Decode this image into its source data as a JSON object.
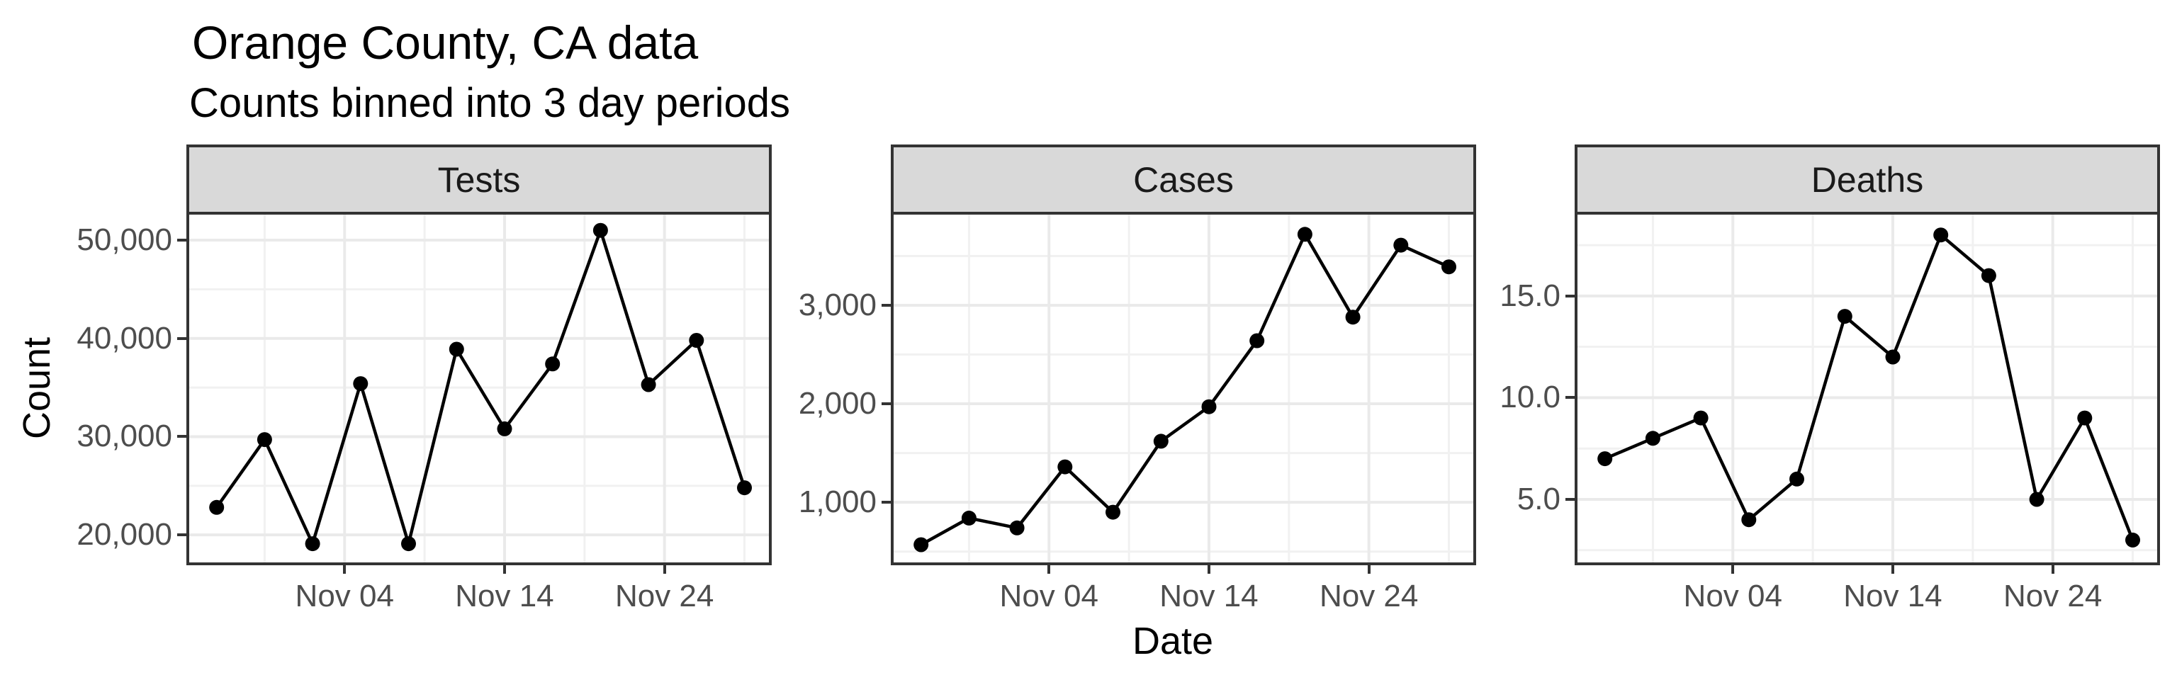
{
  "chart_data": {
    "type": "line",
    "title": "Orange County, CA data",
    "subtitle": "Counts binned into 3 day periods",
    "xlabel": "Date",
    "ylabel": "Count",
    "grid": "on",
    "legend": "none",
    "x": [
      "Oct 27",
      "Oct 30",
      "Nov 02",
      "Nov 05",
      "Nov 08",
      "Nov 11",
      "Nov 14",
      "Nov 17",
      "Nov 20",
      "Nov 23",
      "Nov 26",
      "Nov 29"
    ],
    "x_day_offsets": [
      0,
      3,
      6,
      9,
      12,
      15,
      18,
      21,
      24,
      27,
      30,
      33
    ],
    "x_major_ticks": [
      {
        "day": 8,
        "label": "Nov 04"
      },
      {
        "day": 18,
        "label": "Nov 14"
      },
      {
        "day": 28,
        "label": "Nov 24"
      }
    ],
    "x_minor_days": [
      3,
      13,
      23,
      33
    ],
    "series": [
      {
        "name": "Tests",
        "values": [
          22800,
          29700,
          19100,
          35400,
          19100,
          38900,
          30800,
          37400,
          51000,
          35300,
          39800,
          24800
        ]
      },
      {
        "name": "Cases",
        "values": [
          570,
          840,
          740,
          1360,
          900,
          1620,
          1970,
          2640,
          3720,
          2880,
          3610,
          3390
        ]
      },
      {
        "name": "Deaths",
        "values": [
          7,
          8,
          9,
          4,
          6,
          14,
          12,
          18,
          16,
          5,
          9,
          3
        ]
      }
    ],
    "facets": [
      {
        "label": "Tests",
        "ylim": [
          17200,
          52600
        ],
        "y_major_ticks": [
          {
            "v": 20000,
            "label": "20,000"
          },
          {
            "v": 30000,
            "label": "30,000"
          },
          {
            "v": 40000,
            "label": "40,000"
          },
          {
            "v": 50000,
            "label": "50,000"
          }
        ],
        "y_minor": [
          25000,
          35000,
          45000
        ]
      },
      {
        "label": "Cases",
        "ylim": [
          390,
          3920
        ],
        "y_major_ticks": [
          {
            "v": 1000,
            "label": "1,000"
          },
          {
            "v": 2000,
            "label": "2,000"
          },
          {
            "v": 3000,
            "label": "3,000"
          }
        ],
        "y_minor": [
          500,
          1500,
          2500,
          3500
        ]
      },
      {
        "label": "Deaths",
        "ylim": [
          1.9,
          19.0
        ],
        "y_major_ticks": [
          {
            "v": 5,
            "label": "5.0"
          },
          {
            "v": 10,
            "label": "10.0"
          },
          {
            "v": 15,
            "label": "15.0"
          }
        ],
        "y_minor": [
          2.5,
          7.5,
          12.5,
          17.5
        ]
      }
    ],
    "colors": {
      "line": "#000000",
      "point": "#000000",
      "axis_text": "#4d4d4d",
      "axis_title": "#000000",
      "panel_border": "#333333",
      "strip_fill": "#d9d9d9",
      "strip_text": "#1a1a1a",
      "grid_major": "#eaeaea",
      "grid_minor": "#f1f1f1",
      "background": "#ffffff"
    }
  }
}
